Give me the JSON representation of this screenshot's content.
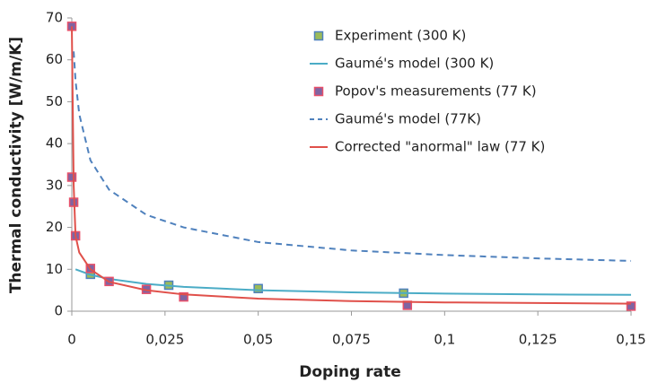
{
  "chart_data": {
    "type": "line",
    "x_label": "Doping rate",
    "y_label": "Thermal conductivity [W/m/K]",
    "xlim": [
      0,
      0.15
    ],
    "ylim": [
      0,
      70
    ],
    "xticks": [
      0,
      {
        "value": 0.025,
        "label": "0,025"
      },
      {
        "value": 0.05,
        "label": "0,05"
      },
      {
        "value": 0.075,
        "label": "0,075"
      },
      {
        "value": 0.1,
        "label": "0,1"
      },
      {
        "value": 0.125,
        "label": "0,125"
      },
      {
        "value": 0.15,
        "label": "0,15"
      }
    ],
    "yticks": [
      0,
      10,
      20,
      30,
      40,
      50,
      60,
      70
    ],
    "grid": false,
    "legend": "upper right",
    "series": [
      {
        "name": "Experiment (300 K)",
        "color": "#9bbb59",
        "edge_color": "#4f81bd",
        "style": "markers",
        "x": [
          0.005,
          0.026,
          0.05,
          0.089
        ],
        "values": [
          8.8,
          6.2,
          5.4,
          4.3
        ]
      },
      {
        "name": "Gaumé's model (300 K)",
        "color": "#4bacc6",
        "style": "line",
        "x": [
          0.001,
          0.005,
          0.01,
          0.02,
          0.03,
          0.05,
          0.075,
          0.1,
          0.125,
          0.15
        ],
        "values": [
          10,
          8.7,
          7.7,
          6.5,
          5.8,
          5.0,
          4.5,
          4.2,
          4.0,
          3.9
        ]
      },
      {
        "name": "Popov's measurements (77 K)",
        "color": "#8064a2",
        "edge_color": "#e8506a",
        "style": "markers",
        "x": [
          0,
          0,
          0.0005,
          0.001,
          0.005,
          0.01,
          0.02,
          0.03,
          0.09,
          0.15
        ],
        "values": [
          68,
          32,
          26,
          18,
          10.2,
          7.1,
          5.2,
          3.4,
          1.4,
          1.2
        ]
      },
      {
        "name": "Gaumé's model (77K)",
        "color": "#4f81bd",
        "style": "dashed",
        "x": [
          0.0005,
          0.001,
          0.002,
          0.005,
          0.01,
          0.02,
          0.03,
          0.05,
          0.075,
          0.1,
          0.125,
          0.15
        ],
        "values": [
          62,
          55,
          47,
          36,
          29,
          23,
          20,
          16.5,
          14.5,
          13.4,
          12.6,
          12
        ]
      },
      {
        "name": "Corrected \"anormal\" law (77 K)",
        "color": "#e0504a",
        "style": "line",
        "x": [
          0,
          0.0005,
          0.001,
          0.002,
          0.005,
          0.01,
          0.02,
          0.03,
          0.05,
          0.075,
          0.1,
          0.15
        ],
        "values": [
          68,
          30,
          18,
          14,
          10,
          7,
          5,
          4,
          3,
          2.4,
          2.1,
          1.8
        ]
      }
    ]
  }
}
